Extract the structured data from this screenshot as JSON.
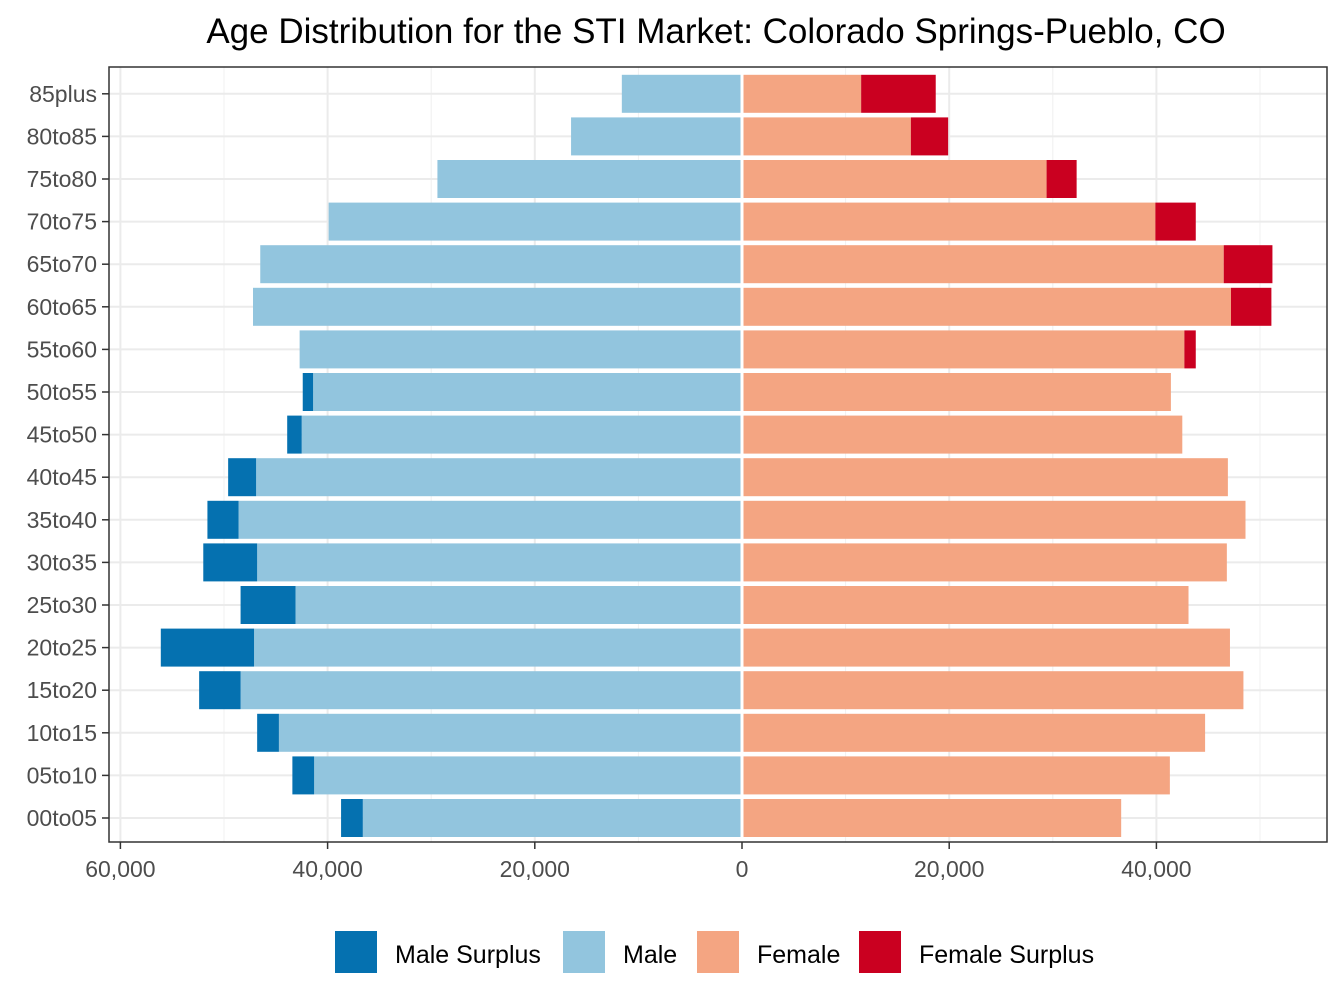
{
  "chart_data": {
    "type": "bar",
    "orientation": "horizontal",
    "title": "Age Distribution for the STI Market: Colorado Springs-Pueblo, CO",
    "xlabel": "",
    "ylabel": "",
    "xlim": [
      -60000,
      55000
    ],
    "x_ticks": [
      -60000,
      -40000,
      -20000,
      0,
      20000,
      40000
    ],
    "x_tick_labels": [
      "60,000",
      "40,000",
      "20,000",
      "0",
      "20,000",
      "40,000"
    ],
    "grid": true,
    "legend_position": "bottom",
    "categories": [
      "00to05",
      "05to10",
      "10to15",
      "15to20",
      "20to25",
      "25to30",
      "30to35",
      "35to40",
      "40to45",
      "45to50",
      "50to55",
      "55to60",
      "60to65",
      "65to70",
      "70to75",
      "75to80",
      "80to85",
      "85plus"
    ],
    "series": [
      {
        "name": "Male Surplus",
        "color": "#0571b0",
        "side": "left",
        "values": [
          2100,
          2100,
          2100,
          4000,
          9000,
          5300,
          5200,
          3000,
          2700,
          1400,
          1000,
          0,
          0,
          0,
          0,
          0,
          0,
          0
        ]
      },
      {
        "name": "Male",
        "color": "#92c5de",
        "side": "left",
        "values": [
          36600,
          41300,
          44700,
          48400,
          47100,
          43100,
          46800,
          48600,
          46900,
          42500,
          41400,
          42700,
          47200,
          46500,
          39900,
          29400,
          16500,
          11600
        ]
      },
      {
        "name": "Female",
        "color": "#f4a582",
        "side": "right",
        "values": [
          36600,
          41300,
          44700,
          48400,
          47100,
          43100,
          46800,
          48600,
          46900,
          42500,
          41400,
          42700,
          47200,
          46500,
          39900,
          29400,
          16300,
          11500
        ]
      },
      {
        "name": "Female Surplus",
        "color": "#ca0020",
        "side": "right",
        "values": [
          0,
          0,
          0,
          0,
          0,
          0,
          0,
          0,
          0,
          0,
          0,
          1100,
          3900,
          4700,
          3900,
          2900,
          3600,
          7200
        ]
      }
    ]
  }
}
